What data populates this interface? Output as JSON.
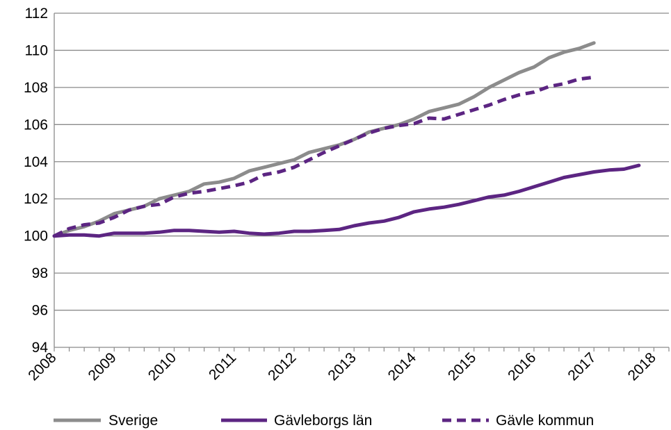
{
  "chart_data": {
    "type": "line",
    "title": "",
    "xlabel": "",
    "ylabel": "",
    "ylim": [
      94,
      112
    ],
    "yticks": [
      94,
      96,
      98,
      100,
      102,
      104,
      106,
      108,
      110,
      112
    ],
    "xlim": [
      2008,
      2018.25
    ],
    "xticks": [
      "2008",
      "2009",
      "2010",
      "2011",
      "2012",
      "2013",
      "2014",
      "2015",
      "2016",
      "2017",
      "2018"
    ],
    "grid": "horizontal",
    "legend_position": "bottom",
    "series": [
      {
        "name": "Sverige",
        "color": "#8c8c8c",
        "style": "solid",
        "x": [
          2008,
          2008.25,
          2008.5,
          2008.75,
          2009,
          2009.25,
          2009.5,
          2009.75,
          2010,
          2010.25,
          2010.5,
          2010.75,
          2011,
          2011.25,
          2011.5,
          2011.75,
          2012,
          2012.25,
          2012.5,
          2012.75,
          2013,
          2013.25,
          2013.5,
          2013.75,
          2014,
          2014.25,
          2014.5,
          2014.75,
          2015,
          2015.25,
          2015.5,
          2015.75,
          2016,
          2016.25,
          2016.5,
          2016.75,
          2017,
          2017.25,
          2017.5,
          2017.75,
          2018,
          2018.25
        ],
        "y": [
          100.0,
          100.3,
          100.5,
          100.8,
          101.2,
          101.4,
          101.6,
          102.0,
          102.2,
          102.4,
          102.8,
          102.9,
          103.1,
          103.5,
          103.7,
          103.9,
          104.1,
          104.5,
          104.7,
          104.9,
          105.2,
          105.6,
          105.8,
          106.0,
          106.3,
          106.7,
          106.9,
          107.1,
          107.5,
          108.0,
          108.4,
          108.8,
          109.1,
          109.6,
          109.9,
          110.1,
          110.4,
          null,
          null,
          null,
          null,
          null
        ]
      },
      {
        "name": "Gävleborgs län",
        "color": "#5c2582",
        "style": "solid",
        "x": [
          2008,
          2008.25,
          2008.5,
          2008.75,
          2009,
          2009.25,
          2009.5,
          2009.75,
          2010,
          2010.25,
          2010.5,
          2010.75,
          2011,
          2011.25,
          2011.5,
          2011.75,
          2012,
          2012.25,
          2012.5,
          2012.75,
          2013,
          2013.25,
          2013.5,
          2013.75,
          2014,
          2014.25,
          2014.5,
          2014.75,
          2015,
          2015.25,
          2015.5,
          2015.75,
          2016,
          2016.25,
          2016.5,
          2016.75,
          2017,
          2017.25,
          2017.5,
          2017.75,
          2018,
          2018.25
        ],
        "y": [
          100.0,
          100.05,
          100.05,
          100.0,
          100.15,
          100.15,
          100.15,
          100.2,
          100.3,
          100.3,
          100.25,
          100.2,
          100.25,
          100.15,
          100.1,
          100.15,
          100.25,
          100.25,
          100.3,
          100.35,
          100.55,
          100.7,
          100.8,
          101.0,
          101.3,
          101.45,
          101.55,
          101.7,
          101.9,
          102.1,
          102.2,
          102.4,
          102.65,
          102.9,
          103.15,
          103.3,
          103.45,
          103.55,
          103.6,
          103.8,
          null,
          null
        ]
      },
      {
        "name": "Gävle kommun",
        "color": "#5c2582",
        "style": "dashed",
        "x": [
          2008,
          2008.25,
          2008.5,
          2008.75,
          2009,
          2009.25,
          2009.5,
          2009.75,
          2010,
          2010.25,
          2010.5,
          2010.75,
          2011,
          2011.25,
          2011.5,
          2011.75,
          2012,
          2012.25,
          2012.5,
          2012.75,
          2013,
          2013.25,
          2013.5,
          2013.75,
          2014,
          2014.25,
          2014.5,
          2014.75,
          2015,
          2015.25,
          2015.5,
          2015.75,
          2016,
          2016.25,
          2016.5,
          2016.75,
          2017,
          2017.25,
          2017.5,
          2017.75,
          2018,
          2018.25
        ],
        "y": [
          100.0,
          100.4,
          100.6,
          100.7,
          101.0,
          101.4,
          101.6,
          101.7,
          102.1,
          102.3,
          102.4,
          102.55,
          102.7,
          102.9,
          103.3,
          103.45,
          103.7,
          104.1,
          104.5,
          104.85,
          105.2,
          105.55,
          105.8,
          105.95,
          106.05,
          106.35,
          106.3,
          106.55,
          106.8,
          107.05,
          107.35,
          107.6,
          107.75,
          108.05,
          108.2,
          108.45,
          108.55,
          null,
          null,
          null,
          null,
          null
        ]
      }
    ]
  }
}
